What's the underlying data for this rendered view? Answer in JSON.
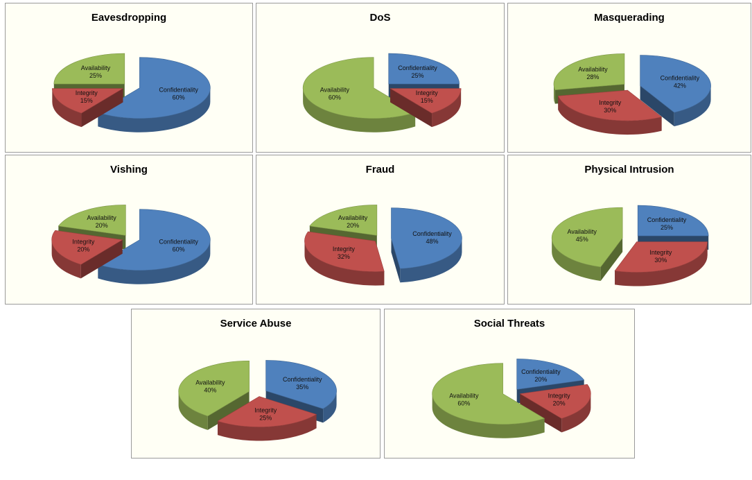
{
  "colors": {
    "Confidentiality": "#4f81bd",
    "Integrity": "#c0504d",
    "Availability": "#9bbb59"
  },
  "chart_data": [
    {
      "type": "pie",
      "title": "Eavesdropping",
      "slices": [
        {
          "label": "Confidentiality",
          "value": 60
        },
        {
          "label": "Integrity",
          "value": 15
        },
        {
          "label": "Availability",
          "value": 25
        }
      ]
    },
    {
      "type": "pie",
      "title": "DoS",
      "slices": [
        {
          "label": "Confidentiality",
          "value": 25
        },
        {
          "label": "Integrity",
          "value": 15
        },
        {
          "label": "Availability",
          "value": 60
        }
      ]
    },
    {
      "type": "pie",
      "title": "Masquerading",
      "slices": [
        {
          "label": "Confidentiality",
          "value": 42
        },
        {
          "label": "Integrity",
          "value": 30
        },
        {
          "label": "Availability",
          "value": 28
        }
      ]
    },
    {
      "type": "pie",
      "title": "Vishing",
      "slices": [
        {
          "label": "Confidentiality",
          "value": 60
        },
        {
          "label": "Integrity",
          "value": 20
        },
        {
          "label": "Availability",
          "value": 20
        }
      ]
    },
    {
      "type": "pie",
      "title": "Fraud",
      "slices": [
        {
          "label": "Confidentiality",
          "value": 48
        },
        {
          "label": "Integrity",
          "value": 32
        },
        {
          "label": "Availability",
          "value": 20
        }
      ]
    },
    {
      "type": "pie",
      "title": "Physical Intrusion",
      "slices": [
        {
          "label": "Confidentiality",
          "value": 25
        },
        {
          "label": "Integrity",
          "value": 30
        },
        {
          "label": "Availability",
          "value": 45
        }
      ]
    },
    {
      "type": "pie",
      "title": "Service Abuse",
      "slices": [
        {
          "label": "Confidentiality",
          "value": 35
        },
        {
          "label": "Integrity",
          "value": 25
        },
        {
          "label": "Availability",
          "value": 40
        }
      ]
    },
    {
      "type": "pie",
      "title": "Social Threats",
      "slices": [
        {
          "label": "Confidentiality",
          "value": 20
        },
        {
          "label": "Integrity",
          "value": 20
        },
        {
          "label": "Availability",
          "value": 60
        }
      ]
    }
  ]
}
